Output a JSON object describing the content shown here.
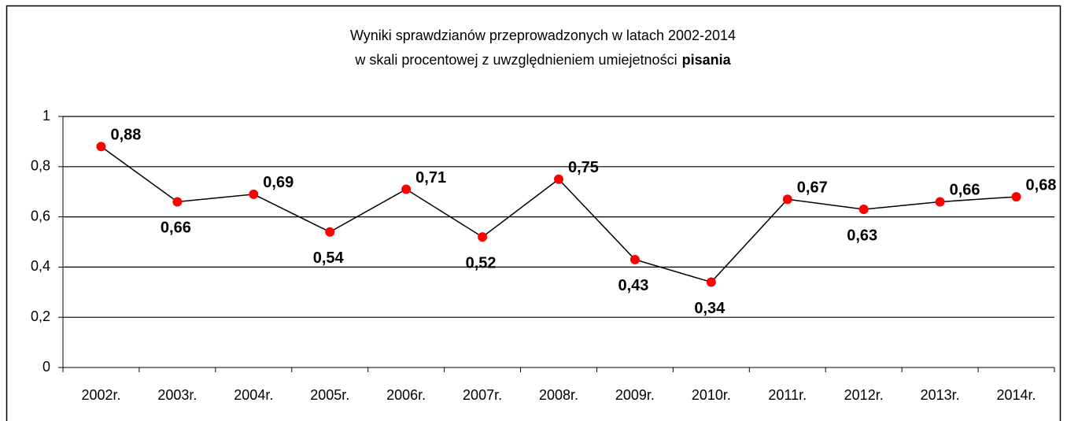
{
  "chart_data": {
    "type": "line",
    "title": {
      "line1": "Wyniki sprawdzianów przeprowadzonych w latach 2002-2014",
      "line2": "w skali procentowej z uwzględnieniem umiejetności",
      "emphasis": "pisania"
    },
    "categories": [
      "2002r.",
      "2003r.",
      "2004r.",
      "2005r.",
      "2006r.",
      "2007r.",
      "2008r.",
      "2009r.",
      "2010r.",
      "2011r.",
      "2012r.",
      "2013r.",
      "2014r."
    ],
    "values": [
      0.88,
      0.66,
      0.69,
      0.54,
      0.71,
      0.52,
      0.75,
      0.43,
      0.34,
      0.67,
      0.63,
      0.66,
      0.68
    ],
    "value_labels": [
      "0,88",
      "0,66",
      "0,69",
      "0,54",
      "0,71",
      "0,52",
      "0,75",
      "0,43",
      "0,34",
      "0,67",
      "0,63",
      "0,66",
      "0,68"
    ],
    "line_color": "#000000",
    "marker_color": "#ff0000",
    "ylim": [
      0,
      1
    ],
    "yticks": [
      0,
      {
        "value": 0.2,
        "label": "0,2"
      },
      {
        "value": 0.4,
        "label": "0,4"
      },
      {
        "value": 0.6,
        "label": "0,6"
      },
      {
        "value": 0.8,
        "label": "0,8"
      },
      1
    ],
    "grid": true
  }
}
